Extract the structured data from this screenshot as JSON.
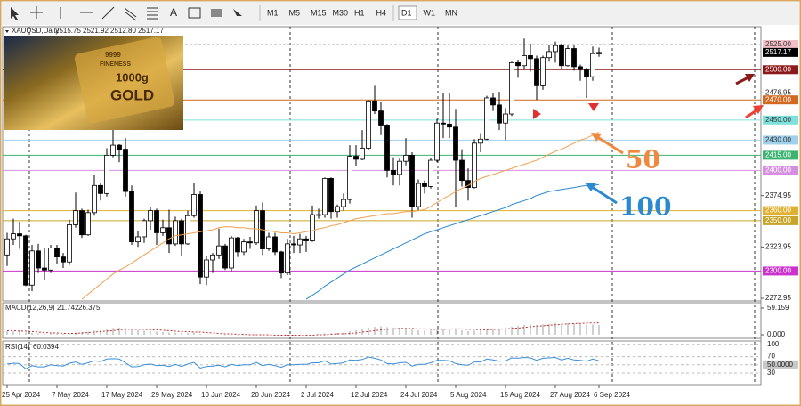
{
  "toolbar": {
    "text_tool": "A",
    "timeframes": [
      "M1",
      "M5",
      "M15",
      "M30",
      "H1",
      "H4",
      "D1",
      "W1",
      "MN"
    ],
    "active": "D1"
  },
  "thumbnail": {
    "texts": [
      "9999",
      "FINENESS",
      "1000g",
      "GOLD"
    ]
  },
  "chart_data": [
    {
      "type": "candlestick",
      "info": {
        "symbol": "XAUUSD,Daily",
        "values": [
          "2515.75",
          "2521.92",
          "2512.80",
          "2517.17"
        ]
      },
      "categories": [
        "25 Apr 2024",
        null,
        null,
        null,
        null,
        null,
        null,
        null,
        "7 May 2024",
        null,
        null,
        null,
        null,
        null,
        null,
        null,
        "17 May 2024",
        null,
        null,
        null,
        null,
        null,
        null,
        null,
        "29 May 2024",
        null,
        null,
        null,
        null,
        null,
        null,
        null,
        "10 Jun 2024",
        null,
        null,
        null,
        null,
        null,
        null,
        null,
        "20 Jun 2024",
        null,
        null,
        null,
        null,
        null,
        null,
        null,
        "2 Jul 2024",
        null,
        null,
        null,
        null,
        null,
        null,
        null,
        "12 Jul 2024",
        null,
        null,
        null,
        null,
        null,
        null,
        null,
        "24 Jul 2024",
        null,
        null,
        null,
        null,
        null,
        null,
        null,
        "5 Aug 2024",
        null,
        null,
        null,
        null,
        null,
        null,
        null,
        "15 Aug 2024",
        null,
        null,
        null,
        null,
        null,
        null,
        null,
        "27 Aug 2024",
        null,
        null,
        null,
        null,
        null,
        null,
        "6 Sep 2024"
      ],
      "open": [
        2316,
        2332,
        2337,
        2335,
        2286,
        2320,
        2303,
        2301,
        2323,
        2314,
        2309,
        2346,
        2360,
        2336,
        2358,
        2385,
        2377,
        2415,
        2425,
        2421,
        2379,
        2329,
        2334,
        2350,
        2360,
        2338,
        2343,
        2327,
        2350,
        2327,
        2355,
        2376,
        2294,
        2311,
        2316,
        2325,
        2303,
        2333,
        2319,
        2329,
        2328,
        2360,
        2322,
        2334,
        2319,
        2298,
        2327,
        2326,
        2332,
        2330,
        2356,
        2356,
        2392,
        2359,
        2364,
        2371,
        2414,
        2411,
        2422,
        2469,
        2459,
        2445,
        2400,
        2396,
        2409,
        2415,
        2364,
        2387,
        2384,
        2410,
        2447,
        2446,
        2443,
        2410,
        2390,
        2383,
        2427,
        2431,
        2472,
        2465,
        2447,
        2456,
        2507,
        2504,
        2514,
        2511,
        2484,
        2512,
        2518,
        2524,
        2504,
        2521,
        2503,
        2500,
        2493,
        2515.75
      ],
      "high": [
        2338,
        2352,
        2349,
        2336,
        2326,
        2327,
        2323,
        2326,
        2326,
        2318,
        2351,
        2378,
        2362,
        2361,
        2395,
        2387,
        2422,
        2450,
        2426,
        2432,
        2385,
        2340,
        2352,
        2364,
        2362,
        2351,
        2361,
        2354,
        2352,
        2360,
        2387,
        2379,
        2315,
        2318,
        2342,
        2327,
        2335,
        2334,
        2332,
        2334,
        2365,
        2368,
        2338,
        2338,
        2320,
        2332,
        2335,
        2337,
        2335,
        2365,
        2362,
        2393,
        2393,
        2366,
        2377,
        2425,
        2425,
        2440,
        2470,
        2484,
        2468,
        2446,
        2413,
        2412,
        2432,
        2418,
        2391,
        2390,
        2412,
        2451,
        2477,
        2477,
        2461,
        2421,
        2402,
        2431,
        2437,
        2474,
        2477,
        2478,
        2462,
        2508,
        2510,
        2531,
        2526,
        2514,
        2514,
        2525,
        2528,
        2526,
        2524,
        2524,
        2505,
        2502,
        2523,
        2521.92
      ],
      "low": [
        2305,
        2326,
        2322,
        2285,
        2280,
        2298,
        2291,
        2298,
        2307,
        2303,
        2306,
        2343,
        2333,
        2335,
        2355,
        2370,
        2374,
        2413,
        2408,
        2374,
        2326,
        2324,
        2328,
        2341,
        2326,
        2335,
        2318,
        2325,
        2315,
        2326,
        2353,
        2287,
        2286,
        2298,
        2312,
        2301,
        2300,
        2314,
        2316,
        2322,
        2326,
        2316,
        2320,
        2316,
        2293,
        2296,
        2318,
        2318,
        2319,
        2329,
        2352,
        2353,
        2352,
        2353,
        2360,
        2367,
        2404,
        2410,
        2420,
        2456,
        2435,
        2393,
        2385,
        2385,
        2405,
        2353,
        2360,
        2377,
        2382,
        2408,
        2432,
        2432,
        2364,
        2384,
        2370,
        2382,
        2418,
        2430,
        2459,
        2440,
        2430,
        2454,
        2492,
        2500,
        2498,
        2470,
        2480,
        2508,
        2507,
        2500,
        2503,
        2499,
        2489,
        2472,
        2489,
        2512.8
      ],
      "close": [
        2332,
        2337,
        2335,
        2286,
        2320,
        2303,
        2301,
        2323,
        2314,
        2309,
        2346,
        2360,
        2336,
        2358,
        2385,
        2377,
        2415,
        2425,
        2421,
        2379,
        2329,
        2334,
        2350,
        2360,
        2338,
        2343,
        2327,
        2350,
        2327,
        2355,
        2376,
        2294,
        2311,
        2316,
        2325,
        2303,
        2333,
        2319,
        2329,
        2328,
        2360,
        2322,
        2334,
        2319,
        2298,
        2327,
        2326,
        2332,
        2330,
        2356,
        2356,
        2392,
        2359,
        2364,
        2371,
        2414,
        2411,
        2422,
        2469,
        2459,
        2445,
        2400,
        2396,
        2409,
        2415,
        2364,
        2387,
        2384,
        2410,
        2447,
        2446,
        2443,
        2410,
        2390,
        2383,
        2427,
        2431,
        2472,
        2465,
        2447,
        2456,
        2507,
        2504,
        2514,
        2511,
        2484,
        2512,
        2518,
        2524,
        2504,
        2521,
        2503,
        2500,
        2493,
        2516,
        2517.17
      ],
      "lines": [
        {
          "label": "50",
          "color": "#f0a050",
          "values": [
            null,
            null,
            null,
            null,
            null,
            null,
            null,
            null,
            null,
            null,
            null,
            null,
            2272,
            2277,
            2282,
            2287,
            2292,
            2297,
            2301,
            2304,
            2308,
            2312,
            2316,
            2320,
            2324,
            2328,
            2332,
            2335,
            2336,
            2337,
            2338,
            2339,
            2340,
            2341,
            2343,
            2344,
            2344,
            2343,
            2343,
            2342,
            2342,
            2341,
            2340,
            2339,
            2338,
            2338,
            2337,
            2338,
            2339,
            2340,
            2342,
            2343,
            2345,
            2346,
            2348,
            2350,
            2352,
            2353,
            2354,
            2355,
            2356,
            2357,
            2357,
            2358,
            2359,
            2359,
            2360,
            2361,
            2364,
            2368,
            2372,
            2375,
            2379,
            2382,
            2385,
            2389,
            2392,
            2394,
            2396,
            2398,
            2400,
            2402,
            2404,
            2406,
            2408,
            2410,
            2413,
            2416,
            2419,
            2421,
            2424,
            2427,
            2430,
            2432,
            2435,
            2438
          ]
        },
        {
          "label": "100",
          "color": "#2a8ad0",
          "values": [
            null,
            null,
            null,
            null,
            null,
            null,
            null,
            null,
            null,
            null,
            null,
            null,
            null,
            null,
            null,
            null,
            null,
            null,
            null,
            null,
            null,
            null,
            null,
            null,
            null,
            null,
            null,
            null,
            null,
            null,
            null,
            null,
            null,
            null,
            null,
            null,
            null,
            null,
            null,
            null,
            null,
            null,
            null,
            null,
            null,
            null,
            null,
            null,
            2272,
            2276,
            2280,
            2285,
            2289,
            2293,
            2297,
            2301,
            2304,
            2307,
            2310,
            2313,
            2316,
            2319,
            2322,
            2325,
            2328,
            2331,
            2334,
            2337,
            2339,
            2341,
            2343,
            2345,
            2347,
            2349,
            2351,
            2353,
            2355,
            2357,
            2359,
            2361,
            2363,
            2366,
            2368,
            2370,
            2372,
            2375,
            2377,
            2379,
            2380,
            2381,
            2382,
            2383,
            2384,
            2385,
            2385,
            2386
          ]
        }
      ],
      "levels": [
        {
          "value": 2525,
          "label": "2525.00",
          "color": "#f4c0c8",
          "text_color": "#333",
          "style": "dashed"
        },
        {
          "value": 2517.17,
          "color": "#000000",
          "text_color": "#ffffff",
          "style": "none"
        },
        {
          "value": 2500,
          "label": "2500.00",
          "color": "#8b1a1a",
          "text_color": "#ffffff",
          "style": "solid"
        },
        {
          "value": 2470,
          "label": "2470.00",
          "color": "#d2691e",
          "text_color": "#ffffff",
          "style": "solid"
        },
        {
          "value": 2450,
          "label": "2450.00",
          "color": "#7fe0dc",
          "text_color": "#333",
          "style": "solid"
        },
        {
          "value": 2430,
          "label": "2430.00",
          "color": "#9fd0ec",
          "text_color": "#333",
          "style": "solid"
        },
        {
          "value": 2415,
          "label": "2415.00",
          "color": "#3cb371",
          "text_color": "#ffffff",
          "style": "solid"
        },
        {
          "value": 2400,
          "label": "2400.00",
          "color": "#d68fe0",
          "text_color": "#ffffff",
          "style": "solid"
        },
        {
          "value": 2360,
          "label": "2360.00",
          "color": "#e0b030",
          "text_color": "#ffffff",
          "style": "solid"
        },
        {
          "value": 2350,
          "label": "2350.00",
          "color": "#c8a428",
          "text_color": "#ffffff",
          "style": "solid"
        },
        {
          "value": 2300,
          "label": "2300.00",
          "color": "#cc33cc",
          "text_color": "#ffffff",
          "style": "solid"
        }
      ],
      "ylim": [
        2270.3,
        2542.7
      ],
      "yticks": [
        2476.95,
        2374.95,
        2323.95,
        2272.95
      ]
    },
    {
      "type": "macd",
      "title": "MACD(12,26,9)",
      "series": [
        {
          "style": "histogram",
          "color": "#a0a0a0",
          "values": [
            8,
            8,
            7,
            5,
            4,
            3,
            2,
            2,
            2,
            2,
            3,
            5,
            6,
            7,
            9,
            10,
            13,
            15,
            16,
            15,
            12,
            10,
            9,
            8,
            7,
            6,
            5,
            5,
            4,
            4,
            5,
            2,
            1,
            0,
            0,
            -1,
            -1,
            -1,
            -1,
            -1,
            0,
            -1,
            -1,
            -1,
            -2,
            -2,
            -2,
            -1,
            -1,
            0,
            1,
            3,
            3,
            4,
            5,
            8,
            10,
            12,
            16,
            18,
            19,
            17,
            16,
            15,
            14,
            11,
            10,
            9,
            9,
            11,
            13,
            14,
            12,
            10,
            8,
            9,
            10,
            13,
            14,
            14,
            15,
            18,
            20,
            22,
            23,
            22,
            23,
            24,
            26,
            25,
            26,
            25,
            24,
            23,
            23,
            21.742
          ]
        },
        {
          "style": "dotted",
          "color": "#c03030",
          "values": [
            9,
            9,
            8,
            8,
            7,
            6,
            5,
            4,
            4,
            3,
            3,
            3,
            4,
            5,
            6,
            7,
            8,
            9,
            11,
            12,
            12,
            12,
            12,
            11,
            11,
            10,
            9,
            8,
            7,
            7,
            6,
            6,
            5,
            4,
            3,
            2,
            2,
            1,
            1,
            0,
            0,
            0,
            0,
            -1,
            -1,
            -1,
            -1,
            -1,
            -1,
            -1,
            0,
            0,
            1,
            2,
            2,
            3,
            4,
            6,
            7,
            9,
            11,
            12,
            13,
            14,
            14,
            14,
            13,
            13,
            12,
            12,
            12,
            13,
            13,
            13,
            12,
            12,
            11,
            11,
            12,
            12,
            13,
            14,
            15,
            16,
            18,
            19,
            20,
            21,
            22,
            23,
            24,
            25,
            25,
            26,
            26,
            26.375
          ]
        }
      ],
      "ylim": [
        -7.9,
        71
      ],
      "yticks": [
        {
          "value": 59.159,
          "label": "59.159"
        },
        {
          "value": 0,
          "label": "0.000"
        }
      ]
    },
    {
      "type": "rsi",
      "title": "RSI(14)",
      "series": [
        {
          "color": "#3a8fd8",
          "values": [
            52,
            54,
            53,
            40,
            48,
            45,
            45,
            50,
            48,
            47,
            54,
            57,
            51,
            55,
            60,
            58,
            64,
            65,
            64,
            55,
            45,
            46,
            50,
            52,
            48,
            49,
            46,
            51,
            46,
            52,
            56,
            42,
            46,
            47,
            49,
            45,
            51,
            48,
            50,
            50,
            56,
            48,
            51,
            48,
            44,
            50,
            50,
            51,
            51,
            55,
            55,
            60,
            52,
            53,
            55,
            62,
            61,
            63,
            69,
            66,
            62,
            53,
            52,
            55,
            56,
            47,
            51,
            51,
            55,
            61,
            61,
            60,
            53,
            50,
            49,
            57,
            57,
            64,
            62,
            59,
            60,
            67,
            66,
            68,
            67,
            61,
            66,
            67,
            68,
            62,
            66,
            62,
            61,
            59,
            64,
            60.0394
          ]
        }
      ],
      "ylim": [
        2,
        108
      ],
      "yticks": [
        100,
        70,
        {
          "value": 50,
          "label": "50.0000"
        },
        30
      ]
    }
  ]
}
